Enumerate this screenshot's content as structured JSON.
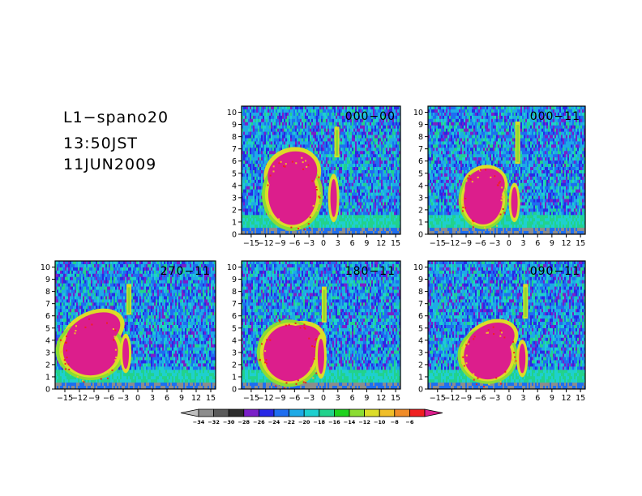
{
  "header": {
    "lines": [
      "L1−spano20",
      "13:50JST",
      "11JUN2009"
    ]
  },
  "colors": {
    "colorbar": [
      "#bdbdbd",
      "#8c8c8c",
      "#5a5a5a",
      "#2d2d2d",
      "#7a1fc8",
      "#2828e6",
      "#1e6ef0",
      "#1eaae6",
      "#1ecfcf",
      "#22d28c",
      "#1ed21e",
      "#8cdc32",
      "#dcdc28",
      "#f0be28",
      "#f08c28",
      "#f02020",
      "#dc1e8c"
    ]
  },
  "chart_data": {
    "type": "heatmap",
    "panels": [
      {
        "label": "000−00",
        "xlim": [
          -17,
          16
        ],
        "ylim": [
          0,
          10.5
        ]
      },
      {
        "label": "000−11",
        "xlim": [
          -17,
          16
        ],
        "ylim": [
          0,
          10.5
        ]
      },
      {
        "label": "270−11",
        "xlim": [
          -17,
          16
        ],
        "ylim": [
          0,
          10.5
        ]
      },
      {
        "label": "180−11",
        "xlim": [
          -17,
          16
        ],
        "ylim": [
          0,
          10.5
        ]
      },
      {
        "label": "090−11",
        "xlim": [
          -17,
          16
        ],
        "ylim": [
          0,
          10.5
        ]
      }
    ],
    "x_ticks": [
      -15,
      -12,
      -9,
      -6,
      -3,
      0,
      3,
      6,
      9,
      12,
      15
    ],
    "x_tick_labels": [
      "−15",
      "−12",
      "−9",
      "−6",
      "−3",
      "0",
      "3",
      "6",
      "9",
      "12",
      "15"
    ],
    "y_ticks": [
      0,
      1,
      2,
      3,
      4,
      5,
      6,
      7,
      8,
      9,
      10
    ],
    "y_tick_labels": [
      "0",
      "1",
      "2",
      "3",
      "4",
      "5",
      "6",
      "7",
      "8",
      "9",
      "10"
    ],
    "colorbar_levels": [
      "−34",
      "−32",
      "−30",
      "−28",
      "−26",
      "−24",
      "−22",
      "−20",
      "−18",
      "−16",
      "−14",
      "−12",
      "−10",
      "−8",
      "−6"
    ],
    "colorbar_extend": "both",
    "grid": false,
    "legend": "bottom-center colorbar"
  }
}
